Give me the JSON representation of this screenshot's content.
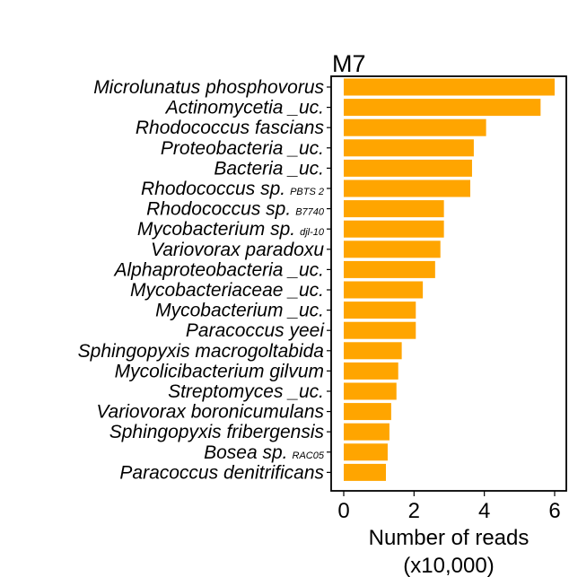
{
  "chart_data": {
    "type": "bar",
    "orientation": "horizontal",
    "title": "M7",
    "xlabel_line1": "Number of reads",
    "xlabel_line2": "(x10,000)",
    "xlim": [
      -0.15,
      6.3
    ],
    "xticks": [
      0,
      2,
      4,
      6
    ],
    "bar_color": "#FFA500",
    "grid": false,
    "categories": [
      {
        "name": "Microlunatus phosphovorus",
        "value": 6.0
      },
      {
        "name": "Actinomycetia _uc.",
        "value": 5.6
      },
      {
        "name": "Rhodococcus fascians",
        "value": 4.05
      },
      {
        "name": "Proteobacteria _uc.",
        "value": 3.7
      },
      {
        "name": "Bacteria _uc.",
        "value": 3.65
      },
      {
        "name": "Rhodococcus sp.",
        "sub": "PBTS 2",
        "value": 3.6
      },
      {
        "name": "Rhodococcus sp.",
        "sub": "B7740",
        "value": 2.85
      },
      {
        "name": "Mycobacterium sp.",
        "sub": "djl-10",
        "value": 2.85
      },
      {
        "name": "Variovorax paradoxu",
        "value": 2.75
      },
      {
        "name": "Alphaproteobacteria _uc.",
        "value": 2.6
      },
      {
        "name": "Mycobacteriaceae _uc.",
        "value": 2.25
      },
      {
        "name": "Mycobacterium _uc.",
        "value": 2.05
      },
      {
        "name": "Paracoccus yeei",
        "value": 2.05
      },
      {
        "name": "Sphingopyxis macrogoltabida",
        "value": 1.65
      },
      {
        "name": "Mycolicibacterium gilvum",
        "value": 1.55
      },
      {
        "name": "Streptomyces _uc.",
        "value": 1.5
      },
      {
        "name": "Variovorax boronicumulans",
        "value": 1.35
      },
      {
        "name": "Sphingopyxis fribergensis",
        "value": 1.3
      },
      {
        "name": "Bosea sp.",
        "sub": "RAC05",
        "value": 1.25
      },
      {
        "name": "Paracoccus denitrificans",
        "value": 1.2
      }
    ]
  }
}
